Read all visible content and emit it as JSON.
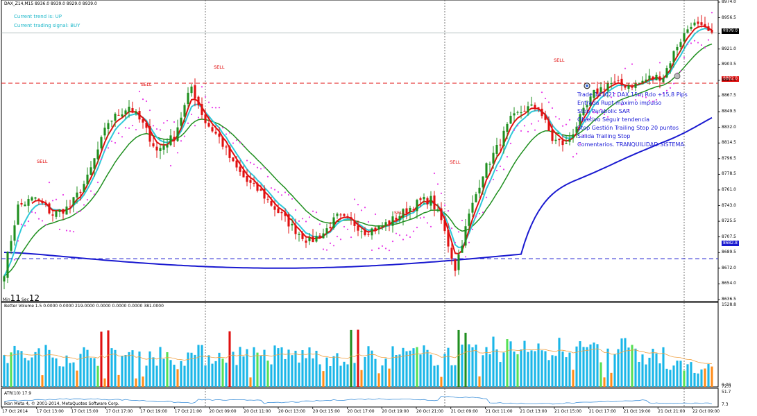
{
  "header": {
    "symbol_info": "DAX_Z14,M15  8936.0 8939.0 8929.0 8939.0",
    "trend_text": "Current trend is: UP",
    "signal_text": "Current trading signal: BUY"
  },
  "timer": {
    "min_label": "Min",
    "min_value": "11",
    "sec_label": "Sec",
    "sec_value": "12"
  },
  "notes": [
    "Trade 141021 DAX 15m Rdo +15,8 Pips",
    "Entrada Rupt máximo impulso",
    "Stop Parabolic SAR",
    "Objetivo Seguir tendencia",
    "Stop Gestión Trailing Stop 20 puntos",
    "Salida Trailing Stop",
    "Comentarios. TRANQUILIDAD.SISTEMA."
  ],
  "signal_label": "SELL",
  "price_tags": {
    "current": "8939.0",
    "red_level": "8882.0",
    "blue_level": "8682.8"
  },
  "colors": {
    "bull": "#1f8f1f",
    "bear": "#e01010",
    "fast_ma": "#e01010",
    "cyan_ma": "#2ec8d8",
    "green_ma": "#1f8f1f",
    "blue_ma": "#1a1ad0",
    "sar": "#e83ce8",
    "vol_normal": "#1ab6e8",
    "vol_low": "#ff8c1a",
    "vol_climax": "#e01010",
    "vol_churn": "#1f8f1f",
    "vol_green": "#55e055",
    "vol_ma": "#f0a040",
    "atr": "#3a8ed8"
  },
  "chart_data": [
    {
      "type": "candlestick",
      "symbol": "DAX_Z14",
      "timeframe": "M15",
      "ylim": [
        8636.5,
        8974.0
      ],
      "y_ticks": [
        "8974.0",
        "8956.5",
        "8939.0",
        "8921.0",
        "8903.5",
        "8885.5",
        "8867.5",
        "8849.5",
        "8832.0",
        "8814.5",
        "8796.5",
        "8778.5",
        "8761.0",
        "8743.0",
        "8725.5",
        "8707.5",
        "8689.5",
        "8672.0",
        "8654.0",
        "8636.5"
      ],
      "x_ticks": [
        "17 Oct 2014",
        "17 Oct 13:00",
        "17 Oct 15:00",
        "17 Oct 17:00",
        "17 Oct 19:00",
        "17 Oct 21:00",
        "20 Oct 09:00",
        "20 Oct 11:00",
        "20 Oct 13:00",
        "20 Oct 15:00",
        "20 Oct 17:00",
        "20 Oct 19:00",
        "20 Oct 21:00",
        "21 Oct 09:00",
        "21 Oct 11:00",
        "21 Oct 13:00",
        "21 Oct 15:00",
        "21 Oct 17:00",
        "21 Oct 19:00",
        "21 Oct 21:00",
        "22 Oct 09:00"
      ],
      "session_breaks": [
        "20 Oct 09:00",
        "21 Oct 09:00",
        "22 Oct 09:00"
      ],
      "last_price": 8939.0,
      "horizontal_lines": [
        8882.0,
        8682.8
      ],
      "keypoints": [
        [
          0,
          8668
        ],
        [
          4,
          8742
        ],
        [
          9,
          8752
        ],
        [
          14,
          8733
        ],
        [
          19,
          8742
        ],
        [
          24,
          8774
        ],
        [
          30,
          8838
        ],
        [
          36,
          8856
        ],
        [
          40,
          8835
        ],
        [
          44,
          8805
        ],
        [
          49,
          8822
        ],
        [
          54,
          8878
        ],
        [
          58,
          8838
        ],
        [
          62,
          8820
        ],
        [
          66,
          8790
        ],
        [
          70,
          8770
        ],
        [
          74,
          8758
        ],
        [
          78,
          8740
        ],
        [
          84,
          8715
        ],
        [
          88,
          8702
        ],
        [
          92,
          8712
        ],
        [
          96,
          8730
        ],
        [
          100,
          8725
        ],
        [
          104,
          8714
        ],
        [
          108,
          8718
        ],
        [
          112,
          8727
        ],
        [
          116,
          8738
        ],
        [
          120,
          8748
        ],
        [
          123,
          8750
        ],
        [
          126,
          8726
        ],
        [
          130,
          8672
        ],
        [
          134,
          8732
        ],
        [
          138,
          8780
        ],
        [
          142,
          8808
        ],
        [
          146,
          8840
        ],
        [
          150,
          8853
        ],
        [
          154,
          8855
        ],
        [
          158,
          8818
        ],
        [
          162,
          8812
        ],
        [
          166,
          8842
        ],
        [
          170,
          8870
        ],
        [
          174,
          8882
        ],
        [
          178,
          8880
        ],
        [
          182,
          8880
        ],
        [
          186,
          8888
        ],
        [
          190,
          8890
        ],
        [
          194,
          8925
        ],
        [
          198,
          8950
        ],
        [
          202,
          8942
        ],
        [
          204,
          8937
        ]
      ],
      "series": [
        {
          "name": "Parabolic SAR",
          "style": "dots"
        },
        {
          "name": "Fast MA",
          "style": "line"
        },
        {
          "name": "Medium MA",
          "style": "line"
        },
        {
          "name": "Slow MA",
          "style": "line"
        },
        {
          "name": "Long MA",
          "style": "line"
        }
      ],
      "sell_signals": [
        [
          11,
          8793
        ],
        [
          41,
          8880
        ],
        [
          62,
          8900
        ],
        [
          114,
          8735
        ],
        [
          130,
          8792
        ],
        [
          160,
          8908
        ]
      ]
    },
    {
      "type": "bar",
      "title": "Better Volume 1.5 0.0000 0.0000 219.0000 0.0000 0.0000 0.0000 381.0000",
      "ylim": [
        0,
        1528.8
      ],
      "y_ticks": [
        "1528.8",
        "0.00"
      ],
      "last_value": 381.0
    },
    {
      "type": "line",
      "title": "ATR(10) 17.9",
      "ylim": [
        7.3,
        72.0
      ],
      "y_ticks": [
        "72.0",
        "51.7",
        "7.3"
      ],
      "last_value": 17.9
    }
  ],
  "copyright": "Ikon Meta 4, © 2001-2014, MetaQuotes Software Corp."
}
